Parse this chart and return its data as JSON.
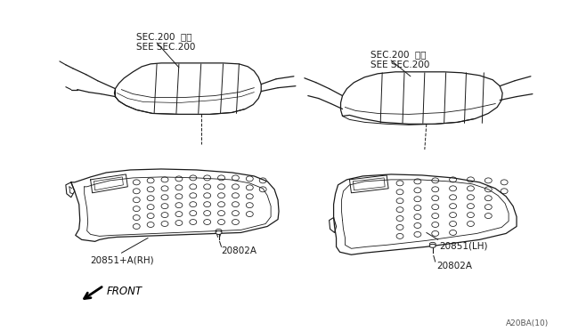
{
  "bg_color": "#ffffff",
  "line_color": "#1a1a1a",
  "text_color": "#1a1a1a",
  "fig_width": 6.4,
  "fig_height": 3.72,
  "dpi": 100,
  "labels": {
    "sec200_left_line1": "SEC.200  参照",
    "sec200_left_line2": "SEE SEC.200",
    "sec200_right_line1": "SEC.200  参照",
    "sec200_right_line2": "SEE SEC.200",
    "part_left_shield": "20851+A（RH）",
    "part_left_bolt": "20802A",
    "part_right_shield": "20851（LH）",
    "part_right_bolt": "20802A",
    "front_label": "FRONT",
    "diagram_ref": "A20BA(10)"
  }
}
